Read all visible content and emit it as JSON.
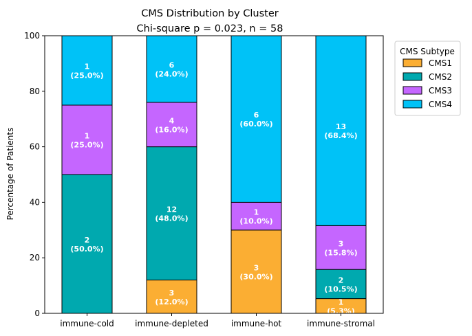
{
  "chart_data": {
    "type": "bar",
    "stacked": true,
    "title": "CMS Distribution by Cluster",
    "subtitle": "Chi-square p = 0.023, n = 58",
    "xlabel": "",
    "ylabel": "Percentage of Patients",
    "ylim": [
      0,
      100
    ],
    "yticks": [
      0,
      20,
      40,
      60,
      80,
      100
    ],
    "categories": [
      "immune-cold",
      "immune-depleted",
      "immune-hot",
      "immune-stromal"
    ],
    "series": [
      {
        "name": "CMS1",
        "color": "#FBAE33",
        "counts": [
          0,
          3,
          3,
          1
        ],
        "values": [
          0.0,
          12.0,
          30.0,
          5.3
        ]
      },
      {
        "name": "CMS2",
        "color": "#00A9AF",
        "counts": [
          2,
          12,
          0,
          2
        ],
        "values": [
          50.0,
          48.0,
          0.0,
          10.5
        ]
      },
      {
        "name": "CMS3",
        "color": "#C566FF",
        "counts": [
          1,
          4,
          1,
          3
        ],
        "values": [
          25.0,
          16.0,
          10.0,
          15.8
        ]
      },
      {
        "name": "CMS4",
        "color": "#00C2F7",
        "counts": [
          1,
          6,
          6,
          13
        ],
        "values": [
          25.0,
          24.0,
          60.0,
          68.4
        ]
      }
    ],
    "legend": {
      "title": "CMS Subtype",
      "placement": "outside-right-top"
    },
    "grid": false
  }
}
